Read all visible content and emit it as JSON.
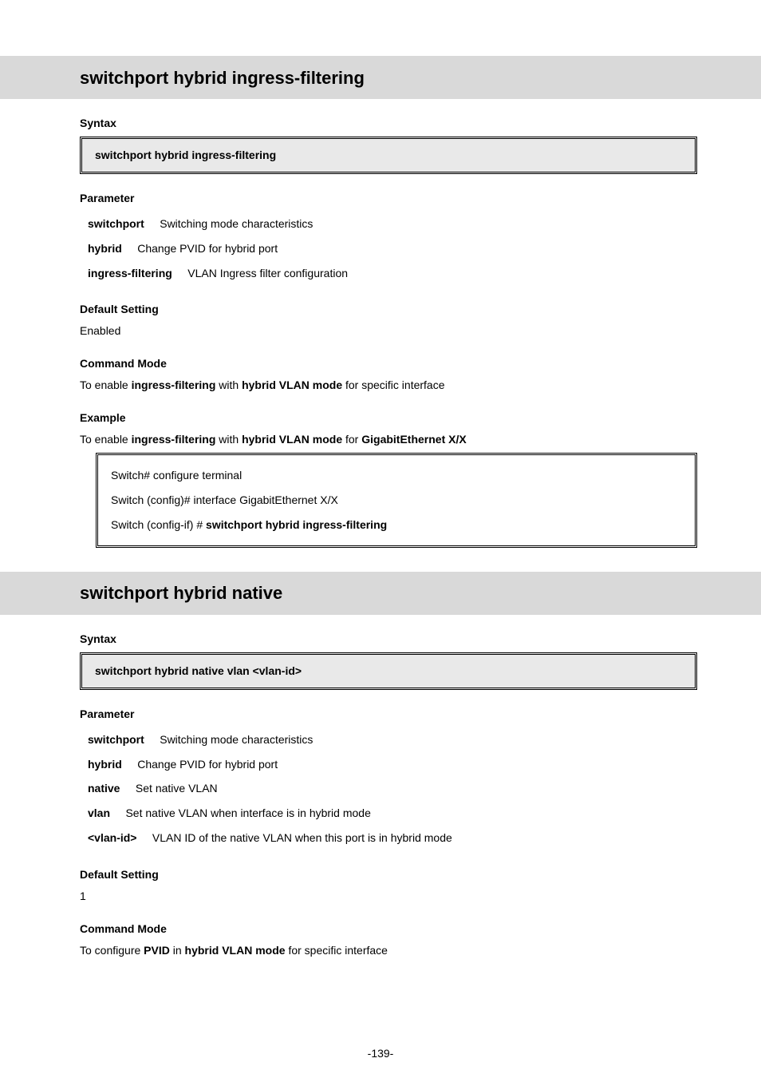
{
  "section1": {
    "header": "switchport hybrid ingress-filtering",
    "syntax_label": "Syntax",
    "syntax": "switchport hybrid ingress-filtering",
    "parameter_label": "Parameter",
    "params": {
      "switchport_kw": "switchport",
      "switchport_desc": "Switching mode characteristics",
      "hybrid_kw": "hybrid",
      "hybrid_desc": "Change PVID for hybrid port",
      "ingress_kw": "ingress-filtering",
      "ingress_desc": "VLAN Ingress filter configuration"
    },
    "default_label": "Default Setting",
    "default_value": "Enabled",
    "mode_label": "Command Mode",
    "mode_sentence": {
      "p1": "To enable ",
      "kw1": "ingress-filtering",
      "p2": " with ",
      "kw2": "hybrid VLAN mode",
      "p3": " for specific interface"
    },
    "example_label": "Example",
    "example_sentence": {
      "p1": "To enable ",
      "kw1": "ingress-filtering",
      "p2": " with ",
      "kw2": "hybrid VLAN mode",
      "p3": " for ",
      "kw3": "GigabitEthernet X/X"
    },
    "example_lines": {
      "l1": "Switch# configure terminal",
      "l2": "Switch (config)# interface GigabitEthernet X/X",
      "l3_pre": "Switch (config-if) # ",
      "l3_cmd": "switchport hybrid ingress-filtering"
    }
  },
  "section2": {
    "header": "switchport hybrid native",
    "syntax_label": "Syntax",
    "syntax": "switchport hybrid native vlan <vlan-id>",
    "parameter_label": "Parameter",
    "params": {
      "switchport_kw": "switchport",
      "switchport_desc": "Switching mode characteristics",
      "hybrid_kw": "hybrid",
      "hybrid_desc": "Change PVID for hybrid port",
      "native_kw": "native",
      "native_desc": "Set native VLAN",
      "vlan_kw": "vlan",
      "vlan_desc": "Set native VLAN when interface is in hybrid mode",
      "vlanid_kw": "<vlan-id>",
      "vlanid_desc": "VLAN ID of the native VLAN when this port is in hybrid mode"
    },
    "default_label": "Default Setting",
    "default_value": "1",
    "mode_label": "Command Mode",
    "mode_sentence": {
      "p1": "To configure ",
      "kw1": "PVID",
      "p2": " in ",
      "kw2": "hybrid VLAN mode",
      "p3": " for specific interface"
    }
  },
  "page_number": "-139-"
}
